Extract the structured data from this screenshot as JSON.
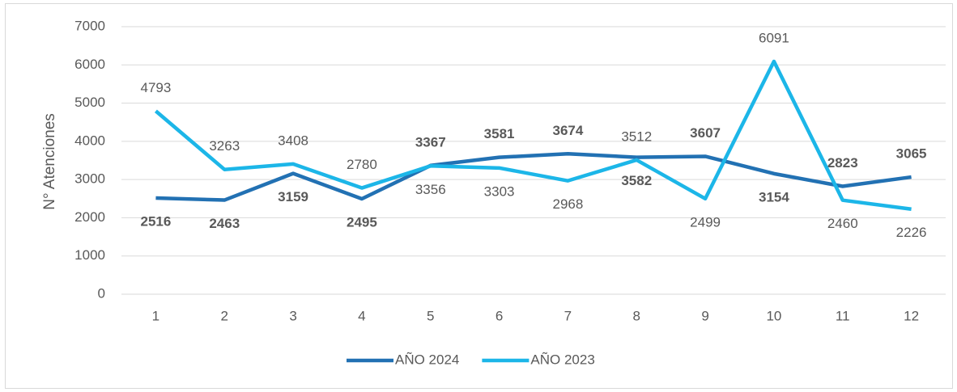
{
  "chart_data": {
    "type": "line",
    "y_label": "N° Atenciones",
    "categories": [
      1,
      2,
      3,
      4,
      5,
      6,
      7,
      8,
      9,
      10,
      11,
      12
    ],
    "series": [
      {
        "name": "AÑO 2024",
        "color": "#2271b3",
        "values": [
          2516,
          2463,
          3159,
          2495,
          3367,
          3581,
          3674,
          3582,
          3607,
          3154,
          2823,
          3065
        ]
      },
      {
        "name": "AÑO 2023",
        "color": "#1cb6e8",
        "values": [
          4793,
          3263,
          3408,
          2780,
          3356,
          3303,
          2968,
          3512,
          2499,
          6091,
          2460,
          2226
        ]
      }
    ],
    "ylim": [
      0,
      7000
    ],
    "yticks": [
      0,
      1000,
      2000,
      3000,
      4000,
      5000,
      6000,
      7000
    ],
    "grid": true,
    "legend": "bottom"
  }
}
